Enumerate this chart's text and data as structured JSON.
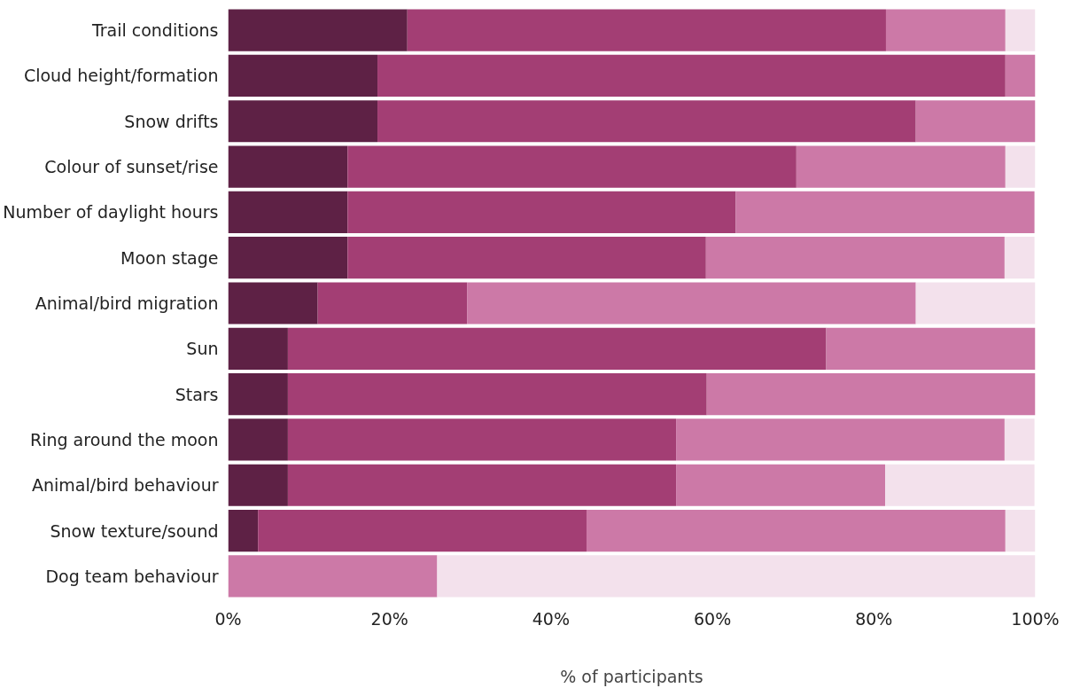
{
  "chart_data": {
    "type": "bar",
    "orientation": "horizontal",
    "stacked": true,
    "xlabel": "% of participants",
    "categories": [
      "Trail conditions",
      "Cloud height/formation",
      "Snow drifts",
      "Colour of sunset/rise",
      "Number of daylight hours",
      "Moon stage",
      "Animal/bird migration",
      "Sun",
      "Stars",
      "Ring around the moon",
      "Animal/bird behaviour",
      "Snow texture/sound",
      "Dog team behaviour"
    ],
    "series": [
      {
        "color": "#5e2145",
        "values": [
          22.2,
          18.5,
          18.5,
          14.8,
          14.8,
          14.8,
          11.1,
          7.4,
          7.4,
          7.4,
          7.4,
          3.7,
          0
        ]
      },
      {
        "color": "#a33e74",
        "values": [
          59.3,
          77.8,
          66.7,
          55.6,
          48.1,
          44.4,
          18.5,
          66.7,
          51.9,
          48.1,
          48.1,
          40.7,
          0
        ]
      },
      {
        "color": "#cc79a7",
        "values": [
          14.8,
          3.7,
          14.8,
          25.9,
          37.0,
          37.0,
          55.6,
          25.9,
          40.7,
          40.7,
          25.9,
          51.9,
          25.9
        ]
      },
      {
        "color": "#f3e1ec",
        "values": [
          3.7,
          0,
          0,
          3.7,
          0,
          3.7,
          14.8,
          0,
          0,
          3.7,
          18.5,
          3.7,
          74.1
        ]
      }
    ],
    "xlim": [
      0,
      100
    ],
    "xticks": [
      {
        "value": 0,
        "label": "0%"
      },
      {
        "value": 20,
        "label": "20%"
      },
      {
        "value": 40,
        "label": "40%"
      },
      {
        "value": 60,
        "label": "60%"
      },
      {
        "value": 80,
        "label": "80%"
      },
      {
        "value": 100,
        "label": "100%"
      }
    ],
    "grid": false
  }
}
